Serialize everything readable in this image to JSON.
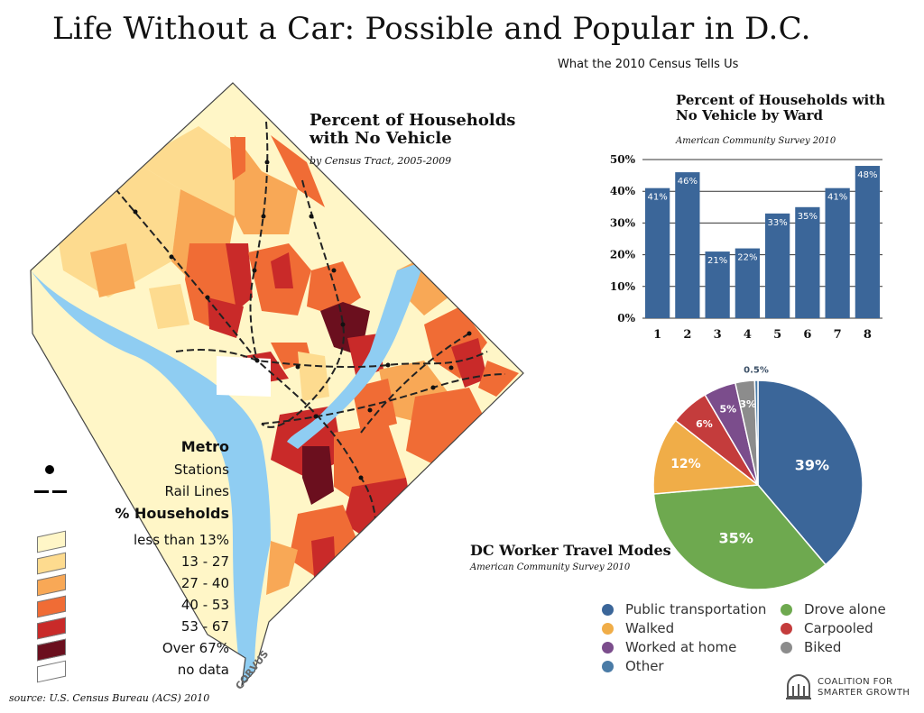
{
  "header": {
    "title": "Life Without a Car: Possible and Popular in D.C.",
    "subtitle": "What the 2010 Census Tells Us"
  },
  "map": {
    "title": "Percent of Households with No Vehicle",
    "subtitle": "by Census Tract, 2005-2009",
    "colors": {
      "water": "#8fcdf2",
      "boundary": "#444444"
    }
  },
  "legend": {
    "metro_heading": "Metro",
    "stations_label": "Stations",
    "rail_label": "Rail Lines",
    "households_heading": "% Households",
    "classes": [
      {
        "label": "less than 13%",
        "color": "#fff6c7"
      },
      {
        "label": "13 - 27",
        "color": "#fddb8f"
      },
      {
        "label": "27 - 40",
        "color": "#f8a856"
      },
      {
        "label": "40 - 53",
        "color": "#f06c35"
      },
      {
        "label": "53 - 67",
        "color": "#c92a29"
      },
      {
        "label": "Over 67%",
        "color": "#6b0f1e"
      },
      {
        "label": "no data",
        "color": "#ffffff"
      }
    ]
  },
  "credits": {
    "source": "source: U.S. Census Bureau (ACS) 2010",
    "map_credit": "CORVUS",
    "logo_line1": "COALITION FOR",
    "logo_line2": "SMARTER GROWTH"
  },
  "chart_data": [
    {
      "type": "bar",
      "title": "Percent of Households with No Vehicle by Ward",
      "subtitle": "American Community Survey 2010",
      "categories": [
        "1",
        "2",
        "3",
        "4",
        "5",
        "6",
        "7",
        "8"
      ],
      "values": [
        41,
        46,
        21,
        22,
        33,
        35,
        41,
        48
      ],
      "data_labels": [
        "41%",
        "46%",
        "21%",
        "22%",
        "33%",
        "35%",
        "41%",
        "48%"
      ],
      "ylim": [
        0,
        50
      ],
      "yticks": [
        "0%",
        "10%",
        "20%",
        "30%",
        "40%",
        "50%"
      ],
      "grid": true,
      "color": "#3b6699"
    },
    {
      "type": "pie",
      "title": "DC Worker Travel Modes",
      "subtitle": "American Community Survey 2010",
      "slices": [
        {
          "label": "Public transportation",
          "value": 39,
          "display": "39%",
          "color": "#3b6699"
        },
        {
          "label": "Drove alone",
          "value": 35,
          "display": "35%",
          "color": "#6ea94f"
        },
        {
          "label": "Walked",
          "value": 12,
          "display": "12%",
          "color": "#f0ad48"
        },
        {
          "label": "Carpooled",
          "value": 6,
          "display": "6%",
          "color": "#c43c3c"
        },
        {
          "label": "Worked at home",
          "value": 5,
          "display": "5%",
          "color": "#7b4d8c"
        },
        {
          "label": "Biked",
          "value": 3,
          "display": "3%",
          "color": "#8c8c8c"
        },
        {
          "label": "Other",
          "value": 0.5,
          "display": "0.5%",
          "color": "#4a7ba6"
        }
      ],
      "legend_order": [
        "Public transportation",
        "Drove alone",
        "Walked",
        "Carpooled",
        "Worked at home",
        "Biked",
        "Other"
      ]
    }
  ]
}
